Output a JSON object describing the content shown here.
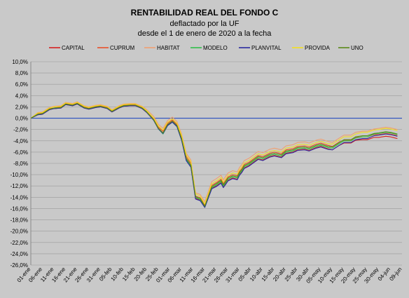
{
  "chart_data": {
    "type": "line",
    "title": "RENTABILIDAD REAL DEL FONDO C",
    "subtitle_lines": [
      "deflactado por la UF",
      "desde el 1 de enero de 2020 a la fecha"
    ],
    "xlabel": "",
    "ylabel": "",
    "ylim": [
      -26,
      10
    ],
    "y_ticks": [
      10,
      8,
      6,
      4,
      2,
      0,
      -2,
      -4,
      -6,
      -8,
      -10,
      -12,
      -14,
      -16,
      -18,
      -20,
      -22,
      -24,
      -26
    ],
    "y_tick_labels": [
      "10,0%",
      "8,0%",
      "6,0%",
      "4,0%",
      "2,0%",
      "0,0%",
      "-2,0%",
      "-4,0%",
      "-6,0%",
      "-8,0%",
      "-10,0%",
      "-12,0%",
      "-14,0%",
      "-16,0%",
      "-18,0%",
      "-20,0%",
      "-22,0%",
      "-24,0%",
      "-26,0%"
    ],
    "x_tick_labels": [
      "01-ene",
      "06-ene",
      "11-ene",
      "16-ene",
      "21-ene",
      "26-ene",
      "31-ene",
      "05-feb",
      "10-feb",
      "15-feb",
      "20-feb",
      "25-feb",
      "01-mar",
      "06-mar",
      "11-mar",
      "16-mar",
      "21-mar",
      "26-mar",
      "31-mar",
      "05-abr",
      "10-abr",
      "15-abr",
      "20-abr",
      "25-abr",
      "30-abr",
      "05-may",
      "10-may",
      "15-may",
      "20-may",
      "25-may",
      "30-may",
      "04-jun",
      "09-jun"
    ],
    "x_day_start": 0,
    "x_tick_step_days": 5,
    "x_max_day": 160,
    "grid": true,
    "legend_position": "top",
    "zero_line_color": "#2a4fbf",
    "series": [
      {
        "name": "CAPITAL",
        "color": "#d62020",
        "x": [
          0,
          3,
          5,
          8,
          10,
          13,
          15,
          18,
          20,
          23,
          25,
          28,
          30,
          33,
          35,
          38,
          40,
          43,
          45,
          48,
          50,
          53,
          55,
          57,
          59,
          61,
          63,
          65,
          67,
          69,
          71,
          73,
          75,
          78,
          80,
          82,
          83,
          84,
          85,
          87,
          89,
          90,
          91,
          92,
          94,
          96,
          98,
          100,
          103,
          105,
          108,
          110,
          113,
          115,
          118,
          120,
          123,
          125,
          128,
          130,
          133,
          135,
          138,
          140,
          143,
          145,
          148,
          150,
          153,
          155,
          157,
          158
        ],
        "y": [
          0,
          0.6,
          0.7,
          1.5,
          1.7,
          1.8,
          2.4,
          2.2,
          2.5,
          1.8,
          1.6,
          1.9,
          2.0,
          1.7,
          1.1,
          1.8,
          2.1,
          2.2,
          2.2,
          1.7,
          1.0,
          -0.3,
          -1.8,
          -2.6,
          -1.2,
          -0.6,
          -1.4,
          -3.8,
          -7.4,
          -8.5,
          -14.2,
          -14.5,
          -15.7,
          -12.4,
          -12.0,
          -11.4,
          -12.2,
          -11.6,
          -11.0,
          -10.6,
          -10.8,
          -10.0,
          -9.5,
          -8.8,
          -8.4,
          -7.8,
          -7.2,
          -7.4,
          -6.8,
          -6.6,
          -6.9,
          -6.2,
          -6.0,
          -5.6,
          -5.5,
          -5.7,
          -5.2,
          -5.0,
          -5.4,
          -5.6,
          -4.8,
          -4.4,
          -4.4,
          -3.9,
          -3.8,
          -3.8,
          -3.4,
          -3.4,
          -3.2,
          -3.3,
          -3.5,
          -3.6
        ]
      },
      {
        "name": "CUPRUM",
        "color": "#e8502a",
        "x": [
          0,
          3,
          5,
          8,
          10,
          13,
          15,
          18,
          20,
          23,
          25,
          28,
          30,
          33,
          35,
          38,
          40,
          43,
          45,
          48,
          50,
          53,
          55,
          57,
          59,
          61,
          63,
          65,
          67,
          69,
          71,
          73,
          75,
          78,
          80,
          82,
          83,
          84,
          85,
          87,
          89,
          90,
          91,
          92,
          94,
          96,
          98,
          100,
          103,
          105,
          108,
          110,
          113,
          115,
          118,
          120,
          123,
          125,
          128,
          130,
          133,
          135,
          138,
          140,
          143,
          145,
          148,
          150,
          153,
          155,
          157,
          158
        ],
        "y": [
          0,
          0.8,
          0.9,
          1.7,
          1.8,
          2.0,
          2.6,
          2.4,
          2.7,
          2.0,
          1.8,
          2.1,
          2.2,
          1.9,
          1.3,
          2.0,
          2.3,
          2.4,
          2.4,
          1.9,
          1.2,
          -0.1,
          -1.6,
          -2.3,
          -0.9,
          -0.3,
          -1.1,
          -3.3,
          -6.8,
          -8.0,
          -13.8,
          -14.1,
          -15.4,
          -11.9,
          -11.4,
          -10.8,
          -11.6,
          -11.0,
          -10.4,
          -10.0,
          -10.2,
          -9.4,
          -8.9,
          -8.2,
          -7.8,
          -7.2,
          -6.6,
          -6.8,
          -6.2,
          -6.0,
          -6.3,
          -5.6,
          -5.4,
          -5.0,
          -4.9,
          -5.1,
          -4.6,
          -4.4,
          -4.8,
          -5.0,
          -4.2,
          -3.9,
          -3.9,
          -3.4,
          -3.3,
          -3.3,
          -2.9,
          -2.9,
          -2.7,
          -2.8,
          -3.0,
          -3.1
        ]
      },
      {
        "name": "HABITAT",
        "color": "#f0a070",
        "x": [
          0,
          3,
          5,
          8,
          10,
          13,
          15,
          18,
          20,
          23,
          25,
          28,
          30,
          33,
          35,
          38,
          40,
          43,
          45,
          48,
          50,
          53,
          55,
          57,
          59,
          61,
          63,
          65,
          67,
          69,
          71,
          73,
          75,
          78,
          80,
          82,
          83,
          84,
          85,
          87,
          89,
          90,
          91,
          92,
          94,
          96,
          98,
          100,
          103,
          105,
          108,
          110,
          113,
          115,
          118,
          120,
          123,
          125,
          128,
          130,
          133,
          135,
          138,
          140,
          143,
          145,
          148,
          150,
          153,
          155,
          157,
          158
        ],
        "y": [
          0,
          1.0,
          1.1,
          1.9,
          2.1,
          2.2,
          2.8,
          2.6,
          2.9,
          2.2,
          2.0,
          2.3,
          2.4,
          2.1,
          1.5,
          2.2,
          2.5,
          2.6,
          2.6,
          2.1,
          1.5,
          0.3,
          -1.1,
          -1.8,
          -0.4,
          0.2,
          -0.6,
          -2.8,
          -6.2,
          -7.4,
          -13.2,
          -13.5,
          -14.8,
          -11.2,
          -10.7,
          -10.1,
          -10.9,
          -10.3,
          -9.7,
          -9.3,
          -9.5,
          -8.7,
          -8.2,
          -7.5,
          -7.1,
          -6.5,
          -5.9,
          -6.1,
          -5.5,
          -5.3,
          -5.6,
          -4.9,
          -4.7,
          -4.3,
          -4.2,
          -4.4,
          -3.9,
          -3.7,
          -4.1,
          -4.3,
          -3.5,
          -3.0,
          -3.0,
          -2.5,
          -2.3,
          -2.3,
          -1.9,
          -1.8,
          -1.6,
          -1.7,
          -1.9,
          -2.0
        ]
      },
      {
        "name": "MODELO",
        "color": "#2fbf4a",
        "x": [
          0,
          3,
          5,
          8,
          10,
          13,
          15,
          18,
          20,
          23,
          25,
          28,
          30,
          33,
          35,
          38,
          40,
          43,
          45,
          48,
          50,
          53,
          55,
          57,
          59,
          61,
          63,
          65,
          67,
          69,
          71,
          73,
          75,
          78,
          80,
          82,
          83,
          84,
          85,
          87,
          89,
          90,
          91,
          92,
          94,
          96,
          98,
          100,
          103,
          105,
          108,
          110,
          113,
          115,
          118,
          120,
          123,
          125,
          128,
          130,
          133,
          135,
          138,
          140,
          143,
          145,
          148,
          150,
          153,
          155,
          157,
          158
        ],
        "y": [
          0,
          0.7,
          0.8,
          1.6,
          1.8,
          1.9,
          2.5,
          2.3,
          2.6,
          1.9,
          1.7,
          2.0,
          2.1,
          1.8,
          1.2,
          1.9,
          2.2,
          2.3,
          2.3,
          1.8,
          1.1,
          -0.4,
          -1.9,
          -2.8,
          -1.3,
          -0.7,
          -1.5,
          -3.9,
          -7.3,
          -8.6,
          -14.0,
          -14.4,
          -15.8,
          -12.3,
          -11.8,
          -11.2,
          -12.0,
          -11.4,
          -10.8,
          -10.4,
          -10.6,
          -9.8,
          -9.3,
          -8.6,
          -8.2,
          -7.6,
          -7.0,
          -7.2,
          -6.6,
          -6.4,
          -6.7,
          -6.0,
          -5.8,
          -5.4,
          -5.3,
          -5.5,
          -5.0,
          -4.8,
          -5.2,
          -5.3,
          -4.5,
          -4.0,
          -4.0,
          -3.5,
          -3.3,
          -3.3,
          -2.8,
          -2.7,
          -2.5,
          -2.6,
          -2.8,
          -2.9
        ]
      },
      {
        "name": "PLANVITAL",
        "color": "#2a2aa0",
        "x": [
          0,
          3,
          5,
          8,
          10,
          13,
          15,
          18,
          20,
          23,
          25,
          28,
          30,
          33,
          35,
          38,
          40,
          43,
          45,
          48,
          50,
          53,
          55,
          57,
          59,
          61,
          63,
          65,
          67,
          69,
          71,
          73,
          75,
          78,
          80,
          82,
          83,
          84,
          85,
          87,
          89,
          90,
          91,
          92,
          94,
          96,
          98,
          100,
          103,
          105,
          108,
          110,
          113,
          115,
          118,
          120,
          123,
          125,
          128,
          130,
          133,
          135,
          138,
          140,
          143,
          145,
          148,
          150,
          153,
          155,
          157,
          158
        ],
        "y": [
          0,
          0.6,
          0.7,
          1.5,
          1.7,
          1.8,
          2.4,
          2.2,
          2.5,
          1.8,
          1.6,
          1.9,
          2.0,
          1.7,
          1.1,
          1.8,
          2.1,
          2.2,
          2.2,
          1.7,
          1.0,
          -0.4,
          -1.9,
          -2.7,
          -1.3,
          -0.7,
          -1.5,
          -3.9,
          -7.5,
          -8.7,
          -14.3,
          -14.6,
          -15.8,
          -12.5,
          -12.1,
          -11.5,
          -12.3,
          -11.7,
          -11.1,
          -10.7,
          -10.9,
          -10.1,
          -9.6,
          -8.9,
          -8.5,
          -7.9,
          -7.3,
          -7.5,
          -6.9,
          -6.7,
          -7.0,
          -6.3,
          -6.1,
          -5.7,
          -5.6,
          -5.8,
          -5.3,
          -5.1,
          -5.5,
          -5.6,
          -4.8,
          -4.3,
          -4.3,
          -3.8,
          -3.6,
          -3.6,
          -3.1,
          -3.0,
          -2.8,
          -2.9,
          -3.1,
          -3.2
        ]
      },
      {
        "name": "PROVIDA",
        "color": "#f2e020",
        "x": [
          0,
          3,
          5,
          8,
          10,
          13,
          15,
          18,
          20,
          23,
          25,
          28,
          30,
          33,
          35,
          38,
          40,
          43,
          45,
          48,
          50,
          53,
          55,
          57,
          59,
          61,
          63,
          65,
          67,
          69,
          71,
          73,
          75,
          78,
          80,
          82,
          83,
          84,
          85,
          87,
          89,
          90,
          91,
          92,
          94,
          96,
          98,
          100,
          103,
          105,
          108,
          110,
          113,
          115,
          118,
          120,
          123,
          125,
          128,
          130,
          133,
          135,
          138,
          140,
          143,
          145,
          148,
          150,
          153,
          155,
          157,
          158
        ],
        "y": [
          0,
          0.9,
          1.0,
          1.8,
          2.0,
          2.1,
          2.7,
          2.5,
          2.8,
          2.1,
          1.9,
          2.2,
          2.3,
          2.0,
          1.4,
          2.1,
          2.4,
          2.5,
          2.5,
          2.0,
          1.3,
          0.0,
          -1.4,
          -2.1,
          -0.7,
          -0.1,
          -0.9,
          -3.1,
          -6.5,
          -7.7,
          -13.4,
          -13.8,
          -15.2,
          -11.6,
          -11.1,
          -10.5,
          -11.3,
          -10.7,
          -10.1,
          -9.7,
          -9.9,
          -9.1,
          -8.6,
          -7.9,
          -7.5,
          -6.9,
          -6.3,
          -6.5,
          -5.9,
          -5.7,
          -6.0,
          -5.3,
          -5.1,
          -4.7,
          -4.6,
          -4.8,
          -4.3,
          -4.1,
          -4.5,
          -4.6,
          -3.8,
          -3.3,
          -3.3,
          -2.8,
          -2.5,
          -2.5,
          -2.1,
          -2.0,
          -1.8,
          -1.9,
          -2.1,
          -2.2
        ]
      },
      {
        "name": "UNO",
        "color": "#5a8a1a",
        "x": [
          0,
          3,
          5,
          8,
          10,
          13,
          15,
          18,
          20,
          23,
          25,
          28,
          30,
          33,
          35,
          38,
          40,
          43,
          45,
          48,
          50,
          53,
          55,
          57,
          59,
          61,
          63,
          65,
          67,
          69,
          71,
          73,
          75,
          78,
          80,
          82,
          83,
          84,
          85,
          87,
          89,
          90,
          91,
          92,
          94,
          96,
          98,
          100,
          103,
          105,
          108,
          110,
          113,
          115,
          118,
          120,
          123,
          125,
          128,
          130,
          133,
          135,
          138,
          140,
          143,
          145,
          148,
          150,
          153,
          155,
          157,
          158
        ],
        "y": [
          0,
          0.7,
          0.8,
          1.6,
          1.8,
          1.9,
          2.5,
          2.3,
          2.6,
          1.9,
          1.7,
          2.0,
          2.1,
          1.8,
          1.2,
          1.9,
          2.2,
          2.3,
          2.3,
          1.8,
          1.1,
          -0.3,
          -1.8,
          -2.6,
          -1.1,
          -0.5,
          -1.3,
          -3.6,
          -7.1,
          -8.3,
          -13.9,
          -14.2,
          -15.6,
          -12.1,
          -11.6,
          -11.0,
          -11.8,
          -11.2,
          -10.6,
          -10.2,
          -10.4,
          -9.6,
          -9.1,
          -8.4,
          -8.0,
          -7.4,
          -6.8,
          -7.0,
          -6.4,
          -6.2,
          -6.5,
          -5.8,
          -5.6,
          -5.2,
          -5.1,
          -5.3,
          -4.8,
          -4.6,
          -5.0,
          -5.1,
          -4.3,
          -3.8,
          -3.8,
          -3.3,
          -3.1,
          -3.1,
          -2.7,
          -2.6,
          -2.4,
          -2.5,
          -2.7,
          -2.8
        ]
      }
    ]
  }
}
